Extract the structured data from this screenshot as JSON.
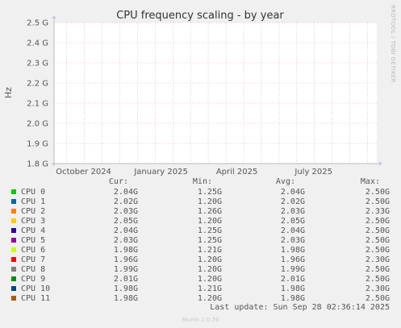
{
  "title": "CPU frequency scaling - by year",
  "side_label": "RRDTOOL / TOBI OETIKER",
  "footer": "Munin 2.0.76",
  "last_update": "Last update: Sun Sep 28 02:36:14 2025",
  "colors": {
    "background": "#f0f0f0",
    "plot_bg": "#ffffff",
    "grid": "#e6a0a0",
    "axis": "#bbbbbb"
  },
  "chart_data": {
    "type": "line",
    "title": "CPU frequency scaling - by year",
    "ylabel": "Hz",
    "xlabel": "",
    "ylim": [
      1.8,
      2.5
    ],
    "y_ticks": [
      {
        "value": 2.5,
        "label": "2.5 G"
      },
      {
        "value": 2.4,
        "label": "2.4 G"
      },
      {
        "value": 2.3,
        "label": "2.3 G"
      },
      {
        "value": 2.2,
        "label": "2.2 G"
      },
      {
        "value": 2.1,
        "label": "2.1 G"
      },
      {
        "value": 2.0,
        "label": "2.0 G"
      },
      {
        "value": 1.9,
        "label": "1.9 G"
      },
      {
        "value": 1.8,
        "label": "1.8 G"
      }
    ],
    "x_range": [
      "2024-09-10",
      "2025-09-28"
    ],
    "x_tick_labels": [
      {
        "label": "October 2024",
        "date": "2024-10-15"
      },
      {
        "label": "January 2025",
        "date": "2025-01-15"
      },
      {
        "label": "April 2025",
        "date": "2025-04-15"
      },
      {
        "label": "July 2025",
        "date": "2025-07-15"
      }
    ],
    "x_grid_dates": [
      "2024-09-25",
      "2024-10-16",
      "2024-11-06",
      "2024-11-27",
      "2024-12-18",
      "2025-01-08",
      "2025-01-29",
      "2025-02-19",
      "2025-03-12",
      "2025-04-02",
      "2025-04-23",
      "2025-05-14",
      "2025-06-04",
      "2025-06-25",
      "2025-07-16",
      "2025-08-06",
      "2025-08-27",
      "2025-09-17"
    ],
    "grid": true,
    "series": []
  },
  "legend": {
    "headers": {
      "cur": "Cur:",
      "min": "Min:",
      "avg": "Avg:",
      "max": "Max:"
    },
    "rows": [
      {
        "name": "CPU 0",
        "color": "#00cc00",
        "cur": "2.04G",
        "min": "1.25G",
        "avg": "2.04G",
        "max": "2.50G"
      },
      {
        "name": "CPU 1",
        "color": "#0066b3",
        "cur": "2.02G",
        "min": "1.20G",
        "avg": "2.02G",
        "max": "2.50G"
      },
      {
        "name": "CPU 2",
        "color": "#ff8000",
        "cur": "2.03G",
        "min": "1.26G",
        "avg": "2.03G",
        "max": "2.33G"
      },
      {
        "name": "CPU 3",
        "color": "#ffcc00",
        "cur": "2.05G",
        "min": "1.20G",
        "avg": "2.05G",
        "max": "2.50G"
      },
      {
        "name": "CPU 4",
        "color": "#330099",
        "cur": "2.04G",
        "min": "1.25G",
        "avg": "2.04G",
        "max": "2.50G"
      },
      {
        "name": "CPU 5",
        "color": "#990099",
        "cur": "2.03G",
        "min": "1.25G",
        "avg": "2.03G",
        "max": "2.50G"
      },
      {
        "name": "CPU 6",
        "color": "#ccff00",
        "cur": "1.98G",
        "min": "1.21G",
        "avg": "1.98G",
        "max": "2.50G"
      },
      {
        "name": "CPU 7",
        "color": "#ff0000",
        "cur": "1.96G",
        "min": "1.20G",
        "avg": "1.96G",
        "max": "2.30G"
      },
      {
        "name": "CPU 8",
        "color": "#808080",
        "cur": "1.99G",
        "min": "1.20G",
        "avg": "1.99G",
        "max": "2.50G"
      },
      {
        "name": "CPU 9",
        "color": "#008f00",
        "cur": "2.01G",
        "min": "1.20G",
        "avg": "2.01G",
        "max": "2.50G"
      },
      {
        "name": "CPU 10",
        "color": "#00487d",
        "cur": "1.98G",
        "min": "1.21G",
        "avg": "1.98G",
        "max": "2.30G"
      },
      {
        "name": "CPU 11",
        "color": "#b35a00",
        "cur": "1.98G",
        "min": "1.20G",
        "avg": "1.98G",
        "max": "2.50G"
      }
    ]
  }
}
